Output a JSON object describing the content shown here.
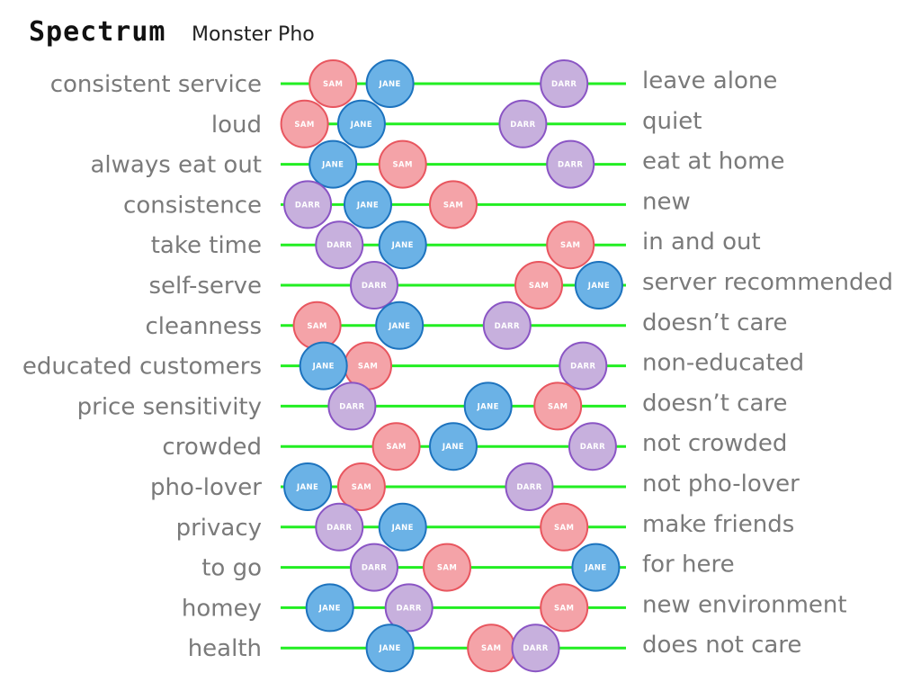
{
  "header": {
    "title": "Spectrum",
    "subtitle": "Monster Pho"
  },
  "people": {
    "sam": {
      "label": "SAM",
      "fill": "#f4a3a8",
      "stroke": "#e8565f"
    },
    "jane": {
      "label": "JANE",
      "fill": "#6bb2e6",
      "stroke": "#1d73be"
    },
    "darr": {
      "label": "DARR",
      "fill": "#c7b0dd",
      "stroke": "#8a55c4"
    }
  },
  "line_color": "#22ee22",
  "rows": [
    {
      "left": "consistent service",
      "right": "leave alone",
      "sam": 0.12,
      "jane": 0.3,
      "darr": 0.85
    },
    {
      "left": "loud",
      "right": "quiet",
      "sam": 0.03,
      "jane": 0.21,
      "darr": 0.72
    },
    {
      "left": "always eat out",
      "right": "eat at home",
      "sam": 0.34,
      "jane": 0.12,
      "darr": 0.87
    },
    {
      "left": "consistence",
      "right": "new",
      "sam": 0.5,
      "jane": 0.23,
      "darr": 0.04
    },
    {
      "left": "take time",
      "right": "in and out",
      "sam": 0.87,
      "jane": 0.34,
      "darr": 0.14
    },
    {
      "left": "self-serve",
      "right": "server recommended",
      "sam": 0.77,
      "jane": 0.96,
      "darr": 0.25
    },
    {
      "left": "cleanness",
      "right": "doesn’t care",
      "sam": 0.07,
      "jane": 0.33,
      "darr": 0.67
    },
    {
      "left": "educated customers",
      "right": "non-educated",
      "sam": 0.23,
      "jane": 0.09,
      "darr": 0.91
    },
    {
      "left": "price sensitivity",
      "right": "doesn’t care",
      "sam": 0.83,
      "jane": 0.61,
      "darr": 0.18
    },
    {
      "left": "crowded",
      "right": "not crowded",
      "sam": 0.32,
      "jane": 0.5,
      "darr": 0.94
    },
    {
      "left": "pho-lover",
      "right": "not pho-lover",
      "sam": 0.21,
      "jane": 0.04,
      "darr": 0.74
    },
    {
      "left": "privacy",
      "right": "make friends",
      "sam": 0.85,
      "jane": 0.34,
      "darr": 0.14
    },
    {
      "left": "to go",
      "right": "for here",
      "sam": 0.48,
      "jane": 0.95,
      "darr": 0.25
    },
    {
      "left": "homey",
      "right": "new environment",
      "sam": 0.85,
      "jane": 0.11,
      "darr": 0.36
    },
    {
      "left": "health",
      "right": "does not care",
      "sam": 0.62,
      "jane": 0.3,
      "darr": 0.76
    }
  ]
}
